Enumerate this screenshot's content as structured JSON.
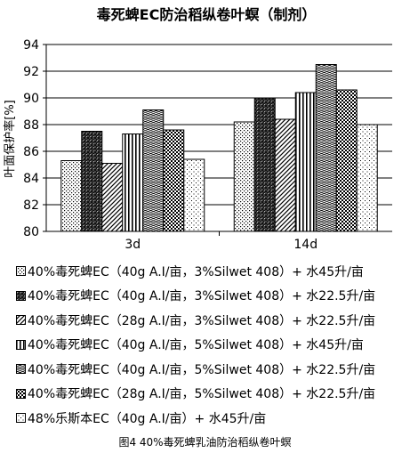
{
  "chart_data": {
    "type": "bar",
    "title": "毒死蜱EC防治稻纵卷叶螟（制剂）",
    "ylabel": "叶面保护率[%]",
    "xlabel": "",
    "categories": [
      "3d",
      "14d"
    ],
    "ylim": [
      80,
      94
    ],
    "yticks": [
      80,
      82,
      84,
      86,
      88,
      90,
      92,
      94
    ],
    "grid": true,
    "legend_position": "bottom",
    "series": [
      {
        "name": "40%毒死蜱EC（40g A.I/亩，3%Silwet 408）+ 水45升/亩",
        "values": [
          85.3,
          88.2
        ],
        "pattern": "dots"
      },
      {
        "name": "40%毒死蜱EC（40g A.I/亩，3%Silwet 408）+ 水22.5升/亩",
        "values": [
          87.5,
          90.0
        ],
        "pattern": "dense-check"
      },
      {
        "name": "40%毒死蜱EC（28g A.I/亩，3%Silwet 408）+ 水22.5升/亩",
        "values": [
          85.1,
          88.4
        ],
        "pattern": "diagonal"
      },
      {
        "name": "40%毒死蜱EC（40g A.I/亩，5%Silwet 408）+ 水45升/亩",
        "values": [
          87.3,
          90.4
        ],
        "pattern": "vertical"
      },
      {
        "name": "40%毒死蜱EC（40g A.I/亩，5%Silwet 408）+ 水22.5升/亩",
        "values": [
          89.1,
          92.5
        ],
        "pattern": "wave"
      },
      {
        "name": "40%毒死蜱EC（28g A.I/亩，5%Silwet 408）+ 水22.5升/亩",
        "values": [
          87.6,
          90.6
        ],
        "pattern": "check"
      },
      {
        "name": "48%乐斯本EC（40g A.I/亩）+ 水45升/亩",
        "values": [
          85.4,
          88.0
        ],
        "pattern": "sparse-dots"
      }
    ]
  },
  "caption": "图4 40%毒死蜱乳油防治稻纵卷叶螟"
}
